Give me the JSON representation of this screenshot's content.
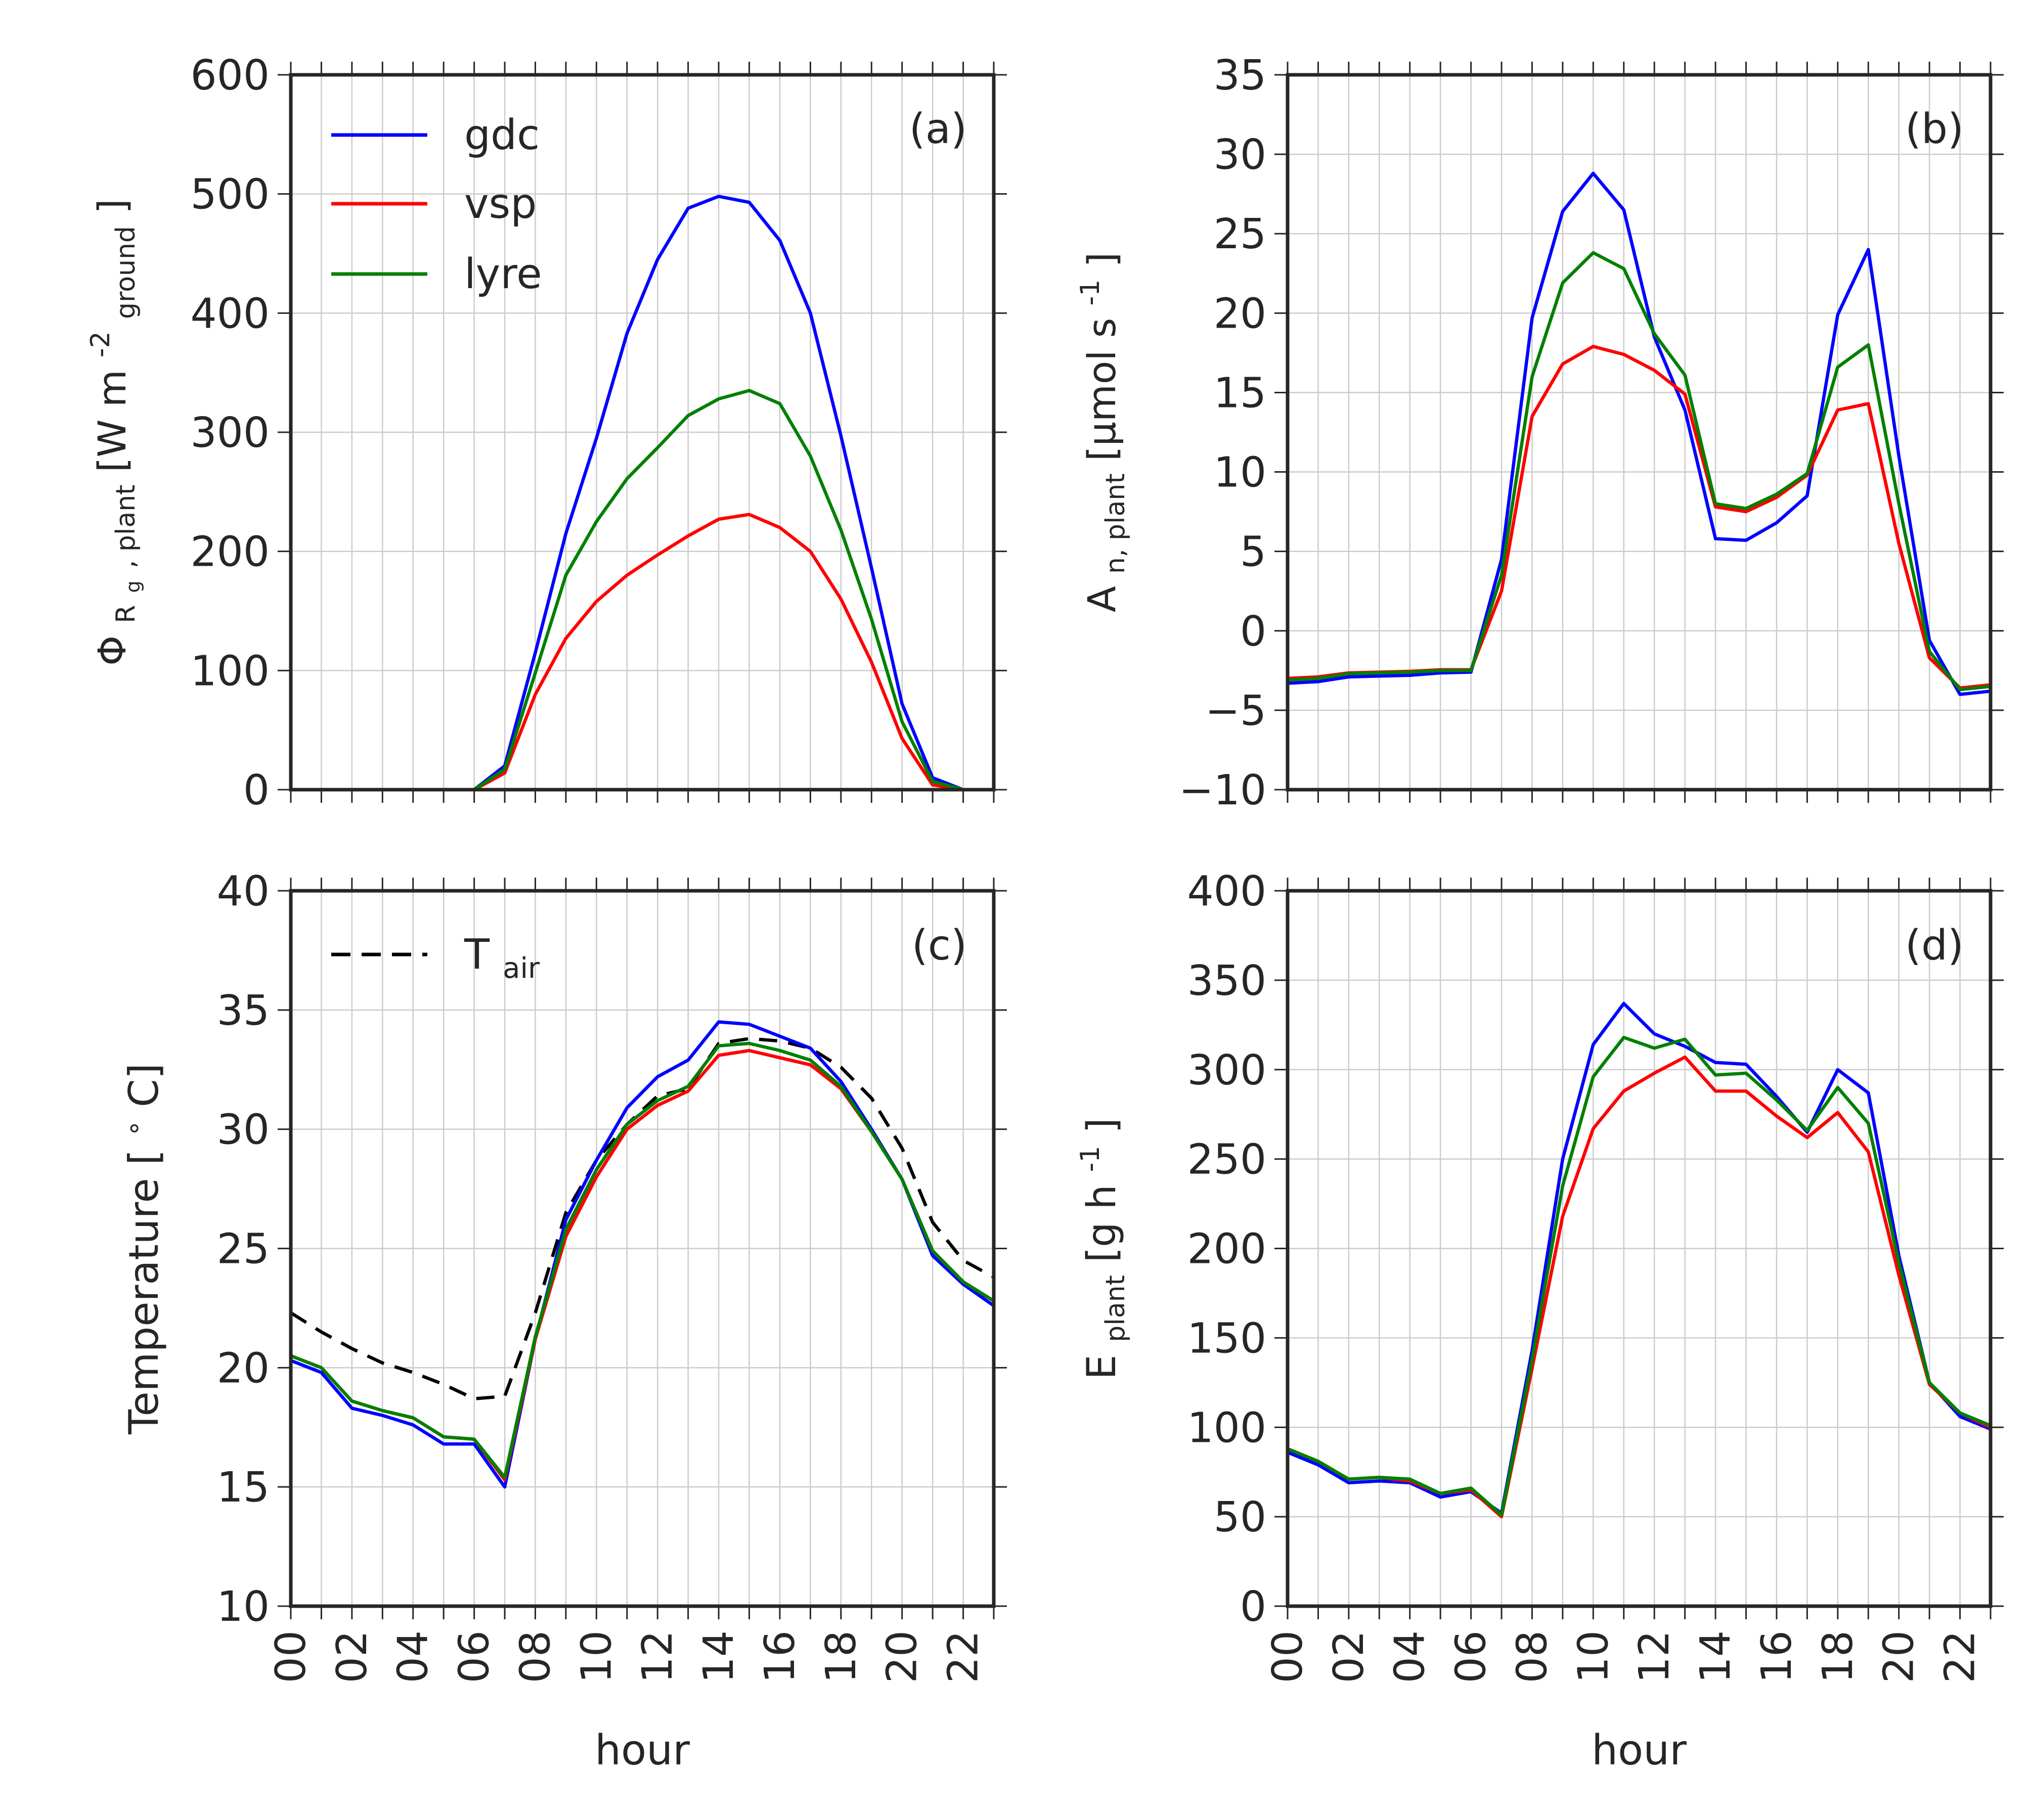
{
  "x_tick_labels": [
    "00",
    "02",
    "04",
    "06",
    "08",
    "10",
    "12",
    "14",
    "16",
    "18",
    "20",
    "22"
  ],
  "colors": {
    "gdc": "#0000ff",
    "vsp": "#ff0000",
    "lyre": "#008000",
    "tair": "#000000",
    "grid": "#cccccc",
    "frame": "#262626"
  },
  "chart_data": [
    {
      "type": "line",
      "panel_label": "(a)",
      "xlabel": "",
      "ylabel": {
        "main": "Φ",
        "sub": "R",
        "subsub": "g",
        "sub_rest": ", plant",
        "unit_pre": " [W m",
        "unit_sup": "-2",
        "unit_sub": "ground",
        "unit_post": "]"
      },
      "xlim": [
        0,
        23
      ],
      "ylim": [
        0,
        600
      ],
      "yticks": [
        0,
        100,
        200,
        300,
        400,
        500,
        600
      ],
      "grid": true,
      "legend": {
        "placement": "top-left",
        "entries": [
          "gdc",
          "vsp",
          "lyre"
        ]
      },
      "x": [
        0,
        1,
        2,
        3,
        4,
        5,
        6,
        7,
        8,
        9,
        10,
        11,
        12,
        13,
        14,
        15,
        16,
        17,
        18,
        19,
        20,
        21,
        22,
        23
      ],
      "series": [
        {
          "name": "gdc",
          "color": "#0000ff",
          "values": [
            null,
            null,
            null,
            null,
            null,
            null,
            0,
            20,
            115,
            215,
            295,
            383,
            445,
            488,
            498,
            493,
            461,
            400,
            297,
            186,
            72,
            10,
            0,
            null
          ]
        },
        {
          "name": "vsp",
          "color": "#ff0000",
          "values": [
            null,
            null,
            null,
            null,
            null,
            null,
            0,
            14,
            80,
            127,
            158,
            180,
            197,
            213,
            227,
            231,
            220,
            200,
            160,
            107,
            43,
            4,
            0,
            null
          ]
        },
        {
          "name": "lyre",
          "color": "#008000",
          "values": [
            null,
            null,
            null,
            null,
            null,
            null,
            0,
            17,
            98,
            180,
            225,
            261,
            287,
            314,
            328,
            335,
            324,
            280,
            218,
            143,
            57,
            7,
            0,
            null
          ]
        }
      ]
    },
    {
      "type": "line",
      "panel_label": "(b)",
      "xlabel": "",
      "ylabel": {
        "main": "A",
        "sub": "n, plant",
        "unit_pre": " [μmol s",
        "unit_sup": "-1",
        "unit_post": "]"
      },
      "xlim": [
        0,
        23
      ],
      "ylim": [
        -10,
        35
      ],
      "yticks": [
        -10,
        -5,
        0,
        5,
        10,
        15,
        20,
        25,
        30,
        35
      ],
      "ytick_labels": [
        "−10",
        "−5",
        "0",
        "5",
        "10",
        "15",
        "20",
        "25",
        "30",
        "35"
      ],
      "grid": true,
      "x": [
        0,
        1,
        2,
        3,
        4,
        5,
        6,
        7,
        8,
        9,
        10,
        11,
        12,
        13,
        14,
        15,
        16,
        17,
        18,
        19,
        20,
        21,
        22,
        23
      ],
      "series": [
        {
          "name": "gdc",
          "color": "#0000ff",
          "values": [
            -3.3,
            -3.2,
            -2.9,
            -2.85,
            -2.8,
            -2.65,
            -2.6,
            4.5,
            19.7,
            26.4,
            28.8,
            26.5,
            18.5,
            13.9,
            5.8,
            5.7,
            6.8,
            8.5,
            19.9,
            24.0,
            11.0,
            -0.6,
            -4.0,
            -3.8
          ]
        },
        {
          "name": "vsp",
          "color": "#ff0000",
          "values": [
            -3.0,
            -2.9,
            -2.65,
            -2.6,
            -2.55,
            -2.45,
            -2.45,
            2.5,
            13.5,
            16.8,
            17.9,
            17.4,
            16.4,
            14.9,
            7.8,
            7.5,
            8.4,
            9.8,
            13.9,
            14.3,
            5.5,
            -1.7,
            -3.6,
            -3.4
          ]
        },
        {
          "name": "lyre",
          "color": "#008000",
          "values": [
            -3.1,
            -3.0,
            -2.7,
            -2.65,
            -2.6,
            -2.5,
            -2.5,
            3.5,
            16.0,
            21.9,
            23.8,
            22.8,
            18.7,
            16.1,
            8.0,
            7.7,
            8.6,
            9.9,
            16.6,
            18.0,
            8.0,
            -1.3,
            -3.7,
            -3.5
          ]
        }
      ]
    },
    {
      "type": "line",
      "panel_label": "(c)",
      "xlabel": "hour",
      "ylabel": {
        "main": "Temperature [",
        "sup": "∘",
        "post": "C]"
      },
      "xlim": [
        0,
        23
      ],
      "ylim": [
        10,
        40
      ],
      "yticks": [
        10,
        15,
        20,
        25,
        30,
        35,
        40
      ],
      "grid": true,
      "legend": {
        "placement": "top-left",
        "entries": [
          "T_air"
        ],
        "label_main": "T",
        "label_sub": "air"
      },
      "x": [
        0,
        1,
        2,
        3,
        4,
        5,
        6,
        7,
        8,
        9,
        10,
        11,
        12,
        13,
        14,
        15,
        16,
        17,
        18,
        19,
        20,
        21,
        22,
        23
      ],
      "series": [
        {
          "name": "T_air",
          "color": "#000000",
          "dashed": true,
          "values": [
            22.3,
            21.5,
            20.8,
            20.2,
            19.8,
            19.3,
            18.7,
            18.8,
            22.3,
            26.5,
            28.7,
            30.2,
            31.4,
            31.7,
            33.6,
            33.8,
            33.7,
            33.4,
            32.6,
            31.3,
            29.2,
            26.1,
            24.5,
            23.8
          ]
        },
        {
          "name": "gdc",
          "color": "#0000ff",
          "values": [
            20.3,
            19.8,
            18.3,
            18.0,
            17.6,
            16.8,
            16.8,
            15.0,
            21.2,
            26.2,
            28.7,
            30.9,
            32.2,
            32.9,
            34.5,
            34.4,
            33.9,
            33.4,
            32.0,
            30.0,
            27.9,
            24.7,
            23.5,
            22.6
          ]
        },
        {
          "name": "vsp",
          "color": "#ff0000",
          "values": [
            20.5,
            20.0,
            18.6,
            18.2,
            17.9,
            17.1,
            17.0,
            15.3,
            21.2,
            25.5,
            28.0,
            30.0,
            31.0,
            31.6,
            33.1,
            33.3,
            33.0,
            32.7,
            31.7,
            29.9,
            27.9,
            24.9,
            23.6,
            22.8
          ]
        },
        {
          "name": "lyre",
          "color": "#008000",
          "values": [
            20.5,
            20.0,
            18.6,
            18.2,
            17.9,
            17.1,
            17.0,
            15.4,
            21.3,
            25.8,
            28.3,
            30.2,
            31.2,
            31.8,
            33.5,
            33.6,
            33.3,
            32.9,
            31.8,
            29.9,
            27.9,
            24.9,
            23.6,
            22.8
          ]
        }
      ]
    },
    {
      "type": "line",
      "panel_label": "(d)",
      "xlabel": "hour",
      "ylabel": {
        "main": "E",
        "sub": "plant",
        "unit_pre": " [g h",
        "unit_sup": "-1",
        "unit_post": "]"
      },
      "xlim": [
        0,
        23
      ],
      "ylim": [
        0,
        400
      ],
      "yticks": [
        0,
        50,
        100,
        150,
        200,
        250,
        300,
        350,
        400
      ],
      "grid": true,
      "x": [
        0,
        1,
        2,
        3,
        4,
        5,
        6,
        7,
        8,
        9,
        10,
        11,
        12,
        13,
        14,
        15,
        16,
        17,
        18,
        19,
        20,
        21,
        22,
        23
      ],
      "series": [
        {
          "name": "gdc",
          "color": "#0000ff",
          "values": [
            86,
            79,
            69,
            70,
            69,
            61,
            64,
            52,
            143,
            250,
            314,
            337,
            320,
            313,
            304,
            303,
            285,
            265,
            300,
            287,
            196,
            125,
            106,
            99
          ]
        },
        {
          "name": "vsp",
          "color": "#ff0000",
          "values": [
            88,
            81,
            71,
            72,
            70,
            63,
            65,
            50,
            133,
            218,
            267,
            288,
            298,
            307,
            288,
            288,
            274,
            262,
            276,
            254,
            185,
            124,
            108,
            100
          ]
        },
        {
          "name": "lyre",
          "color": "#008000",
          "values": [
            88,
            81,
            71,
            72,
            71,
            63,
            66,
            51,
            138,
            235,
            296,
            318,
            312,
            317,
            297,
            298,
            283,
            266,
            290,
            270,
            192,
            125,
            108,
            101
          ]
        }
      ]
    }
  ]
}
